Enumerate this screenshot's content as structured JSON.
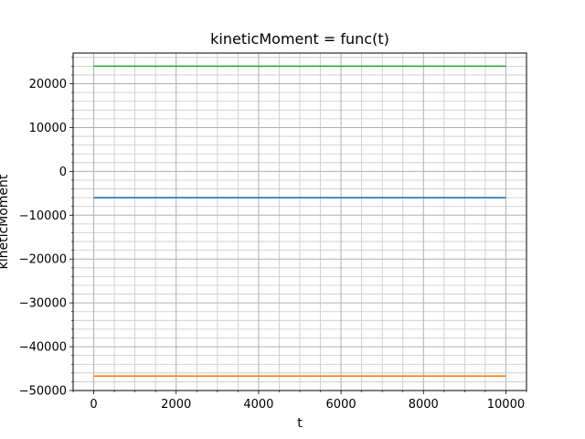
{
  "chart_data": {
    "type": "line",
    "title": "kineticMoment = func(t)",
    "xlabel": "t",
    "ylabel": "kineticMoment",
    "xlim": [
      -500,
      10500
    ],
    "ylim": [
      -50000,
      27000
    ],
    "xticks": [
      0,
      2000,
      4000,
      6000,
      8000,
      10000
    ],
    "yticks": [
      -50000,
      -40000,
      -30000,
      -20000,
      -10000,
      0,
      10000,
      20000
    ],
    "xtick_labels": [
      "0",
      "2000",
      "4000",
      "6000",
      "8000",
      "10000"
    ],
    "ytick_labels": [
      "−50000",
      "−40000",
      "−30000",
      "−20000",
      "−10000",
      "0",
      "10000",
      "20000"
    ],
    "x_minor_step": 500,
    "y_minor_step": 2000,
    "grid": "major and minor",
    "series": [
      {
        "color": "#1f77b4",
        "x": [
          0,
          10000
        ],
        "y": [
          -6000,
          -6000
        ]
      },
      {
        "color": "#ff7f0e",
        "x": [
          0,
          10000
        ],
        "y": [
          -46700,
          -46700
        ]
      },
      {
        "color": "#2ca02c",
        "x": [
          0,
          10000
        ],
        "y": [
          24000,
          24000
        ]
      }
    ]
  }
}
